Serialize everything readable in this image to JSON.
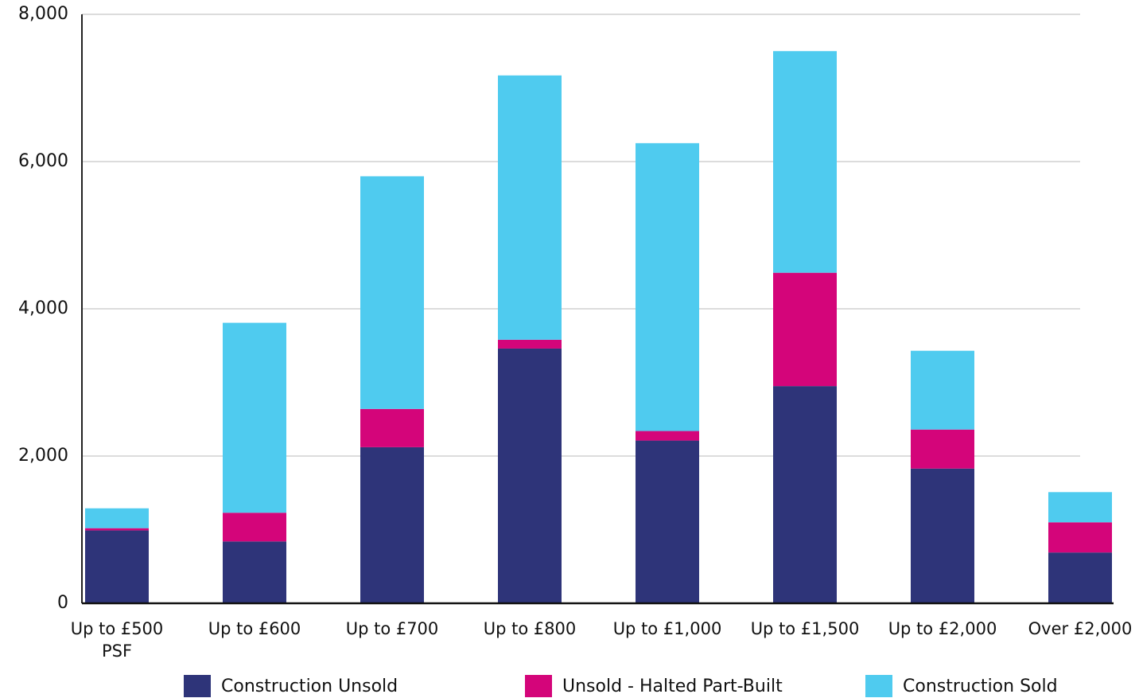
{
  "chart_data": {
    "type": "stacked_bar",
    "categories": [
      "Up to £500 PSF",
      "Up to £600",
      "Up to £700",
      "Up to £800",
      "Up to £1,000",
      "Up to £1,500",
      "Up to £2,000",
      "Over £2,000"
    ],
    "series": [
      {
        "name": "Construction Unsold",
        "color": "#2e3479",
        "values": [
          990,
          840,
          2120,
          3460,
          2210,
          2950,
          1830,
          690
        ]
      },
      {
        "name": "Unsold - Halted Part-Built",
        "color": "#d4057a",
        "values": [
          30,
          390,
          520,
          120,
          130,
          1540,
          530,
          410
        ]
      },
      {
        "name": "Construction Sold",
        "color": "#4fcbef",
        "values": [
          270,
          2580,
          3160,
          3590,
          3910,
          3010,
          1070,
          410
        ]
      }
    ],
    "ylim": [
      0,
      8000
    ],
    "yticks": [
      0,
      {
        "value": 2000,
        "label": "2,000"
      },
      {
        "value": 4000,
        "label": "4,000"
      },
      {
        "value": 6000,
        "label": "6,000"
      },
      {
        "value": 8000,
        "label": "8,000"
      }
    ],
    "grid": true,
    "legend": "bottom"
  }
}
